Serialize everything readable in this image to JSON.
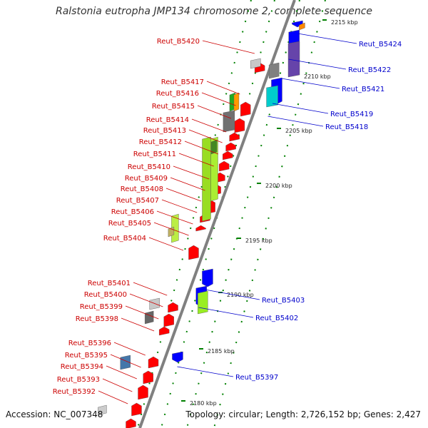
{
  "title": "Ralstonia eutropha JMP134 chromosome 2, complete sequence",
  "footer": {
    "accession": "Accession: NC_007348",
    "summary": "Topology: circular; Length: 2,726,152 bp; Genes: 2,427"
  },
  "colors": {
    "backbone": "#808080",
    "forward_gene": "#ff0000",
    "reverse_gene": "#0000ff",
    "left_label": "#cc0000",
    "right_label": "#0000cc",
    "dots": "#008000"
  },
  "kbp_ticks": [
    "2180 kbp",
    "2185 kbp",
    "2190 kbp",
    "2195 kbp",
    "2200 kbp",
    "2205 kbp",
    "2210 kbp",
    "2215 kbp"
  ],
  "left_labels": [
    "Reut_B5420",
    "Reut_B5417",
    "Reut_B5416",
    "Reut_B5415",
    "Reut_B5414",
    "Reut_B5413",
    "Reut_B5412",
    "Reut_B5411",
    "Reut_B5410",
    "Reut_B5409",
    "Reut_B5408",
    "Reut_B5407",
    "Reut_B5406",
    "Reut_B5405",
    "Reut_B5404",
    "Reut_B5401",
    "Reut_B5400",
    "Reut_B5399",
    "Reut_B5398",
    "Reut_B5396",
    "Reut_B5395",
    "Reut_B5394",
    "Reut_B5393",
    "Reut_B5392"
  ],
  "right_labels": [
    "Reut_B5424",
    "Reut_B5422",
    "Reut_B5421",
    "Reut_B5419",
    "Reut_B5418",
    "Reut_B5403",
    "Reut_B5402",
    "Reut_B5397"
  ]
}
